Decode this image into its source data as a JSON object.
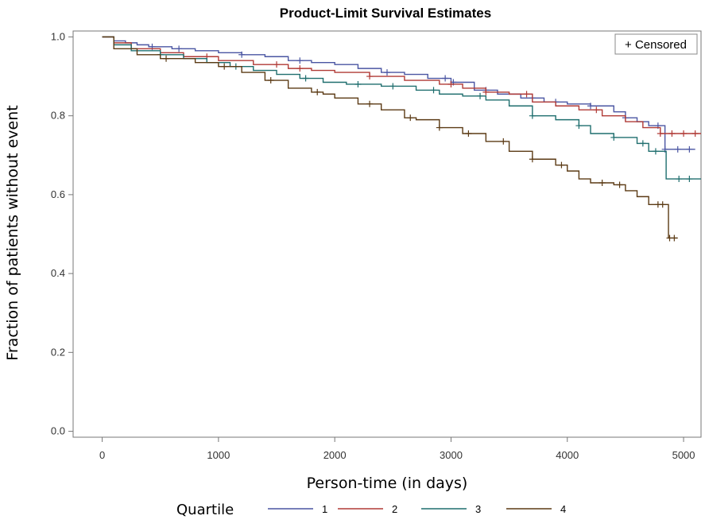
{
  "chart_data": {
    "type": "line",
    "title": "Product-Limit Survival Estimates",
    "xlabel": "Person-time (in days)",
    "ylabel": "Fraction of patients without event",
    "xlim": [
      -250,
      5150
    ],
    "ylim": [
      -0.015,
      1.015
    ],
    "xticks": [
      0,
      1000,
      2000,
      3000,
      4000,
      5000
    ],
    "yticks": [
      0.0,
      0.2,
      0.4,
      0.6,
      0.8,
      1.0
    ],
    "xtick_labels": [
      "0",
      "1000",
      "2000",
      "3000",
      "4000",
      "5000"
    ],
    "ytick_labels": [
      "0.0",
      "0.2",
      "0.4",
      "0.6",
      "0.8",
      "1.0"
    ],
    "censored_label": "+ Censored",
    "legend_title": "Quartile",
    "legend_position": "bottom",
    "grid": false,
    "series": [
      {
        "name": "1",
        "color": "#4a55a2",
        "x": [
          0,
          100,
          200,
          300,
          400,
          600,
          800,
          1000,
          1200,
          1400,
          1600,
          1800,
          2000,
          2200,
          2400,
          2600,
          2800,
          3000,
          3200,
          3400,
          3600,
          3800,
          4000,
          4200,
          4400,
          4500,
          4600,
          4700,
          4840,
          5100
        ],
        "y": [
          1.0,
          0.99,
          0.985,
          0.98,
          0.975,
          0.97,
          0.965,
          0.96,
          0.955,
          0.95,
          0.94,
          0.935,
          0.93,
          0.92,
          0.91,
          0.905,
          0.895,
          0.885,
          0.865,
          0.855,
          0.845,
          0.835,
          0.83,
          0.825,
          0.81,
          0.795,
          0.785,
          0.775,
          0.715,
          0.715
        ],
        "censored_x": [
          430,
          660,
          1200,
          1700,
          2450,
          2950,
          3020,
          3300,
          3700,
          3900,
          4200,
          4500,
          4780,
          4840,
          4950,
          5050
        ]
      },
      {
        "name": "2",
        "color": "#b03a36",
        "x": [
          0,
          100,
          250,
          500,
          700,
          1000,
          1300,
          1600,
          1800,
          2000,
          2300,
          2600,
          2900,
          3100,
          3300,
          3500,
          3700,
          3900,
          4100,
          4300,
          4500,
          4650,
          4800,
          5150
        ],
        "y": [
          1.0,
          0.985,
          0.97,
          0.96,
          0.95,
          0.94,
          0.93,
          0.92,
          0.915,
          0.91,
          0.9,
          0.89,
          0.88,
          0.87,
          0.86,
          0.855,
          0.835,
          0.825,
          0.815,
          0.8,
          0.785,
          0.77,
          0.755,
          0.755
        ],
        "censored_x": [
          900,
          1500,
          1700,
          2300,
          3000,
          3300,
          3650,
          4250,
          4800,
          4900,
          5000,
          5100
        ]
      },
      {
        "name": "3",
        "color": "#1f6e6e",
        "x": [
          0,
          100,
          250,
          500,
          700,
          900,
          1100,
          1300,
          1500,
          1700,
          1900,
          2100,
          2400,
          2700,
          2900,
          3100,
          3300,
          3500,
          3700,
          3900,
          4100,
          4200,
          4400,
          4600,
          4700,
          4850,
          5150
        ],
        "y": [
          1.0,
          0.98,
          0.965,
          0.955,
          0.945,
          0.935,
          0.925,
          0.915,
          0.905,
          0.895,
          0.885,
          0.88,
          0.875,
          0.865,
          0.855,
          0.85,
          0.84,
          0.825,
          0.8,
          0.79,
          0.775,
          0.755,
          0.745,
          0.73,
          0.71,
          0.64,
          0.64
        ],
        "censored_x": [
          500,
          1150,
          1750,
          2200,
          2500,
          2850,
          3250,
          3700,
          4100,
          4400,
          4650,
          4760,
          4960,
          5050
        ]
      },
      {
        "name": "4",
        "color": "#5b3a14",
        "x": [
          0,
          100,
          300,
          500,
          800,
          1000,
          1200,
          1400,
          1600,
          1800,
          1900,
          2000,
          2200,
          2400,
          2600,
          2700,
          2900,
          3100,
          3300,
          3500,
          3700,
          3900,
          4000,
          4100,
          4200,
          4400,
          4500,
          4600,
          4700,
          4800,
          4870,
          4950
        ],
        "y": [
          1.0,
          0.97,
          0.955,
          0.945,
          0.935,
          0.925,
          0.91,
          0.89,
          0.87,
          0.86,
          0.855,
          0.845,
          0.83,
          0.815,
          0.795,
          0.79,
          0.77,
          0.755,
          0.735,
          0.71,
          0.69,
          0.675,
          0.66,
          0.64,
          0.63,
          0.625,
          0.61,
          0.595,
          0.575,
          0.575,
          0.49,
          0.49
        ],
        "censored_x": [
          550,
          1050,
          1450,
          1850,
          2300,
          2650,
          2900,
          3150,
          3450,
          3700,
          3950,
          4300,
          4450,
          4780,
          4820,
          4880,
          4920
        ]
      }
    ]
  }
}
